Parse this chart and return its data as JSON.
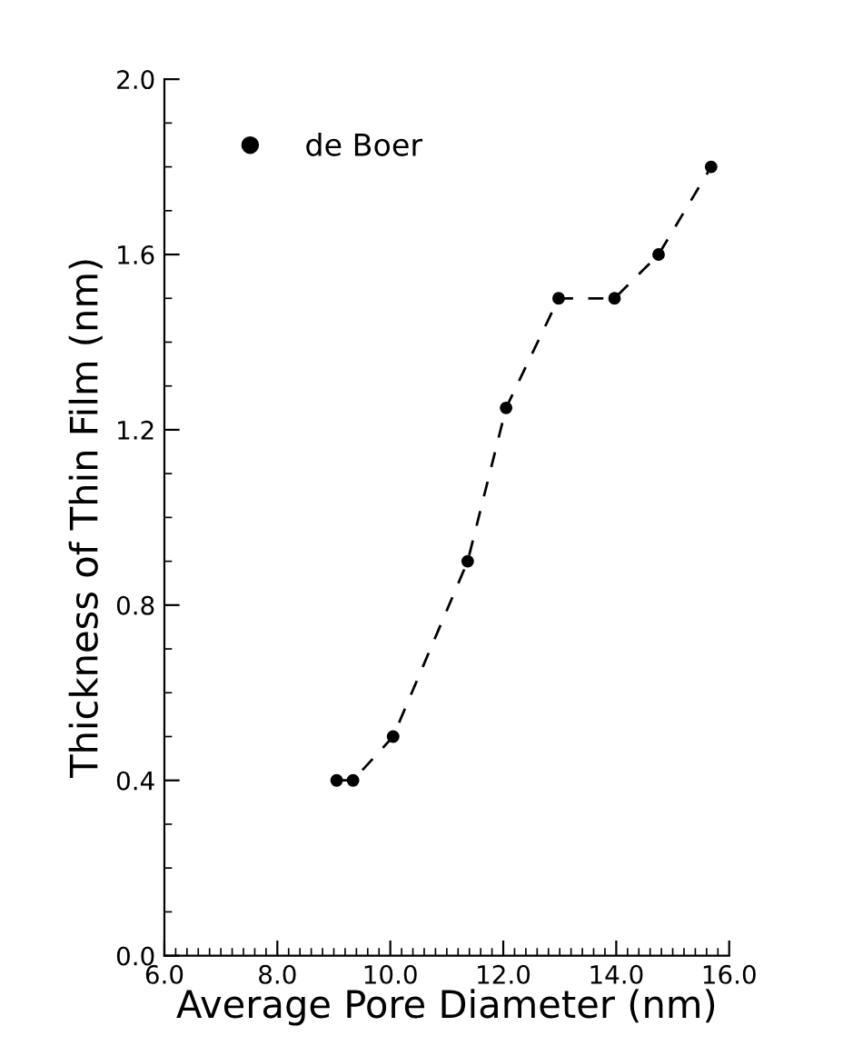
{
  "chart_data": {
    "type": "line",
    "xlabel": "Average Pore Diameter (nm)",
    "ylabel": "Thickness of Thin Film (nm)",
    "series": [
      {
        "name": "de Boer",
        "color": "#000000",
        "x": [
          9.05,
          9.34,
          10.05,
          11.37,
          12.05,
          12.98,
          13.97,
          14.75,
          15.68
        ],
        "values": [
          0.4,
          0.4,
          0.5,
          0.9,
          1.25,
          1.5,
          1.5,
          1.6,
          1.8
        ]
      }
    ],
    "xlim": [
      6.0,
      16.0
    ],
    "xticks": [
      {
        "value": 6,
        "label": "6.0"
      },
      {
        "value": 8,
        "label": "8.0"
      },
      {
        "value": 10,
        "label": "10.0"
      },
      {
        "value": 12,
        "label": "12.0"
      },
      {
        "value": 14,
        "label": "14.0"
      },
      {
        "value": 16,
        "label": "16.0"
      }
    ],
    "ylim": [
      0.0,
      2.0
    ],
    "yticks": [
      {
        "value": 0,
        "label": "0.0"
      },
      {
        "value": 0.4,
        "label": "0.4"
      },
      {
        "value": 0.8,
        "label": "0.8"
      },
      {
        "value": 1.2,
        "label": "1.2"
      },
      {
        "value": 1.6,
        "label": "1.6"
      },
      {
        "value": 2.0,
        "label": "2.0"
      }
    ],
    "grid": false,
    "legend": "top left",
    "marker": "circle",
    "line_style": "dashed"
  }
}
